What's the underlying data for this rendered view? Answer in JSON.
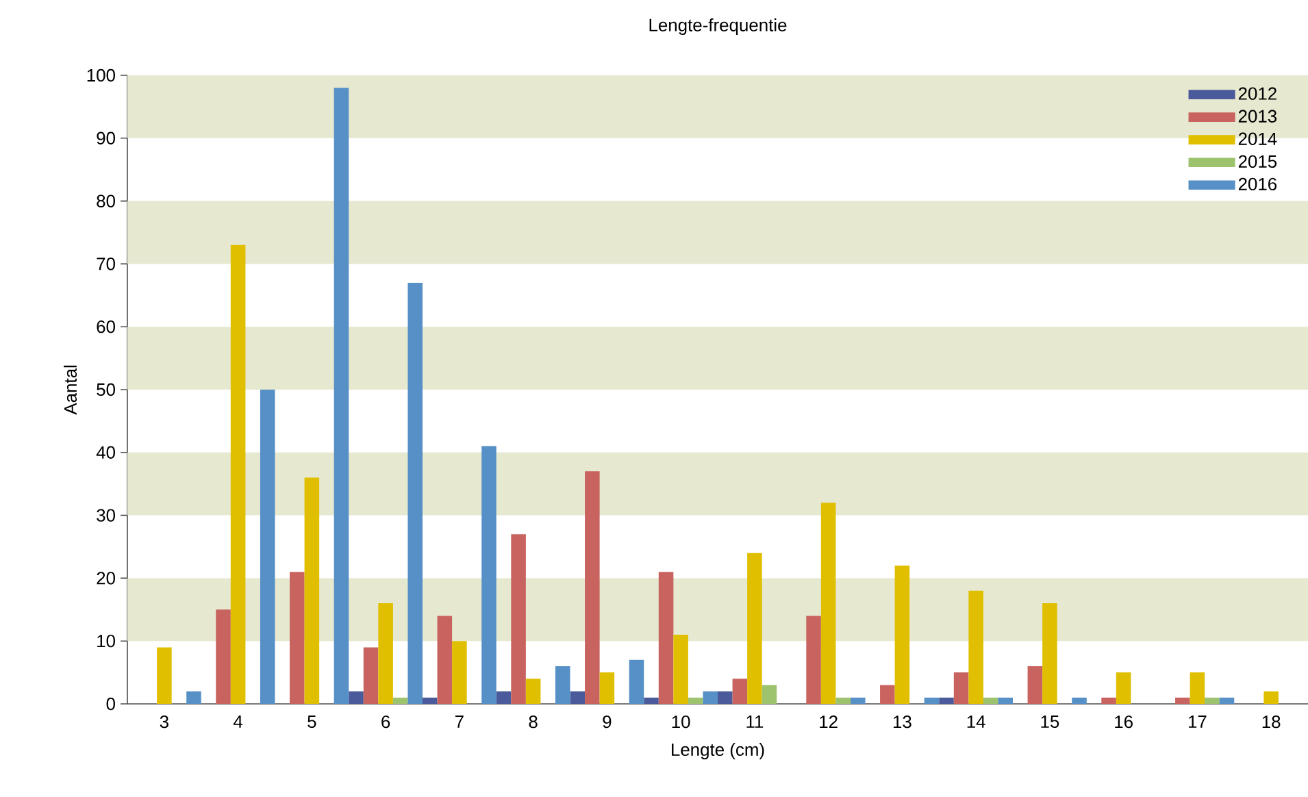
{
  "chart_data": {
    "type": "bar",
    "title": "Lengte-frequentie",
    "xlabel": "Lengte (cm)",
    "ylabel": "Aantal",
    "categories": [
      "3",
      "4",
      "5",
      "6",
      "7",
      "8",
      "9",
      "10",
      "11",
      "12",
      "13",
      "14",
      "15",
      "16",
      "17",
      "18"
    ],
    "series": [
      {
        "name": "2012",
        "color": "#4a5a9a",
        "values": [
          0,
          0,
          0,
          2,
          1,
          2,
          2,
          1,
          2,
          0,
          0,
          1,
          0,
          0,
          0,
          0
        ]
      },
      {
        "name": "2013",
        "color": "#c8635f",
        "values": [
          0,
          15,
          21,
          9,
          14,
          27,
          37,
          21,
          4,
          14,
          3,
          5,
          6,
          1,
          1,
          0
        ]
      },
      {
        "name": "2014",
        "color": "#e0bf00",
        "values": [
          9,
          73,
          36,
          16,
          10,
          4,
          5,
          11,
          24,
          32,
          22,
          18,
          16,
          5,
          5,
          2
        ]
      },
      {
        "name": "2015",
        "color": "#9dc36e",
        "values": [
          0,
          0,
          0,
          1,
          0,
          0,
          0,
          1,
          3,
          1,
          0,
          1,
          0,
          0,
          1,
          0
        ]
      },
      {
        "name": "2016",
        "color": "#5690c6",
        "values": [
          2,
          50,
          98,
          67,
          41,
          6,
          7,
          2,
          0,
          1,
          1,
          1,
          1,
          0,
          1,
          0
        ]
      }
    ],
    "ylim": [
      0,
      100
    ],
    "yticks": [
      0,
      10,
      20,
      30,
      40,
      50,
      60,
      70,
      80,
      90,
      100
    ],
    "bands": [
      {
        "axis": "y",
        "from": 10,
        "to": 20,
        "color": "#e6e8cf"
      },
      {
        "axis": "y",
        "from": 30,
        "to": 40,
        "color": "#e6e8cf"
      },
      {
        "axis": "y",
        "from": 50,
        "to": 60,
        "color": "#e6e8cf"
      },
      {
        "axis": "y",
        "from": 70,
        "to": 80,
        "color": "#e6e8cf"
      },
      {
        "axis": "y",
        "from": 90,
        "to": 100,
        "color": "#e6e8cf"
      }
    ],
    "grid": false,
    "legend": "top right"
  }
}
